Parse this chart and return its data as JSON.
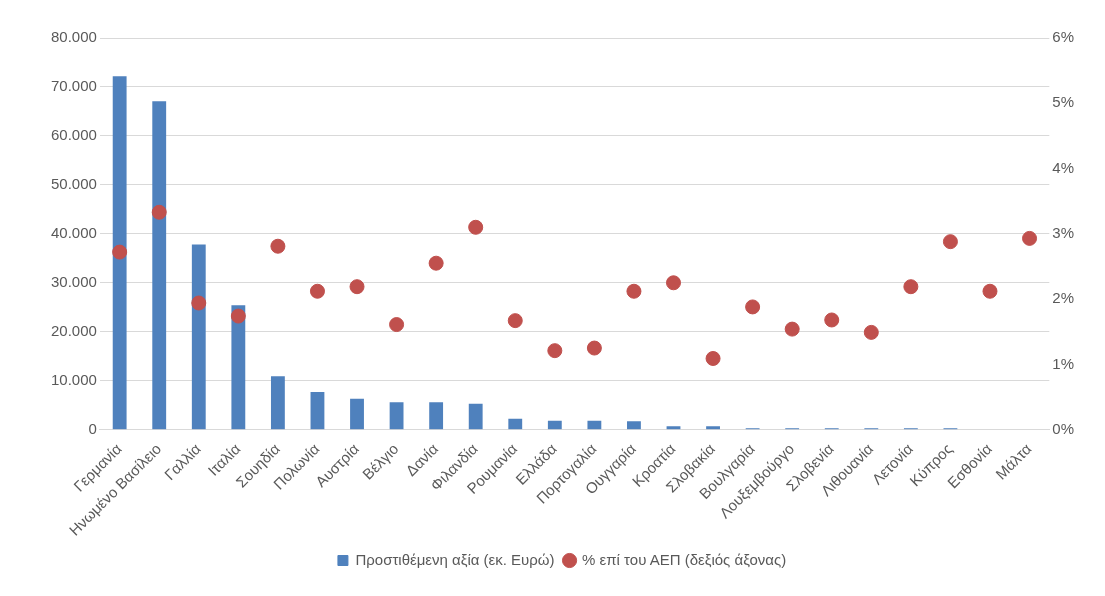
{
  "chart_data": {
    "type": "bar",
    "categories": [
      "Γερμανία",
      "Ηνωμένο Βασίλειο",
      "Γαλλία",
      "Ιταλία",
      "Σουηδία",
      "Πολωνία",
      "Αυστρία",
      "Βέλγιο",
      "Δανία",
      "Φιλανδία",
      "Ρουμανία",
      "Ελλάδα",
      "Πορτογαλία",
      "Ουγγαρία",
      "Κροατία",
      "Σλοβακία",
      "Βουλγαρία",
      "Λουξεμβούργο",
      "Σλοβενία",
      "Λιθουανία",
      "Λετονία",
      "Κύπρος",
      "Εσθονία",
      "Μάλτα"
    ],
    "series": [
      {
        "name": "Προστιθέμενη αξία (εκ. Ευρώ)",
        "color": "#4f81bd",
        "values": [
          72200,
          67100,
          37800,
          25400,
          10900,
          7700,
          6300,
          5600,
          5600,
          5300,
          2200,
          1800,
          1800,
          1700,
          700,
          700,
          300,
          300,
          300,
          300,
          300,
          300,
          null,
          null
        ]
      },
      {
        "name": "% επί του ΑΕΠ (δεξιός άξονας)",
        "type": "scatter",
        "axis": "y2",
        "color": "#c0504d",
        "values": [
          2.72,
          3.33,
          1.94,
          1.74,
          2.81,
          2.12,
          2.19,
          1.61,
          2.55,
          3.1,
          1.67,
          1.21,
          1.25,
          2.12,
          2.25,
          1.09,
          1.88,
          1.54,
          1.68,
          1.49,
          2.19,
          2.88,
          2.12,
          2.93
        ]
      }
    ],
    "ylim": [
      0,
      80000
    ],
    "yticks": [
      {
        "value": 0,
        "label": "0"
      },
      {
        "value": 10000,
        "label": "10.000"
      },
      {
        "value": 20000,
        "label": "20.000"
      },
      {
        "value": 30000,
        "label": "30.000"
      },
      {
        "value": 40000,
        "label": "40.000"
      },
      {
        "value": 50000,
        "label": "50.000"
      },
      {
        "value": 60000,
        "label": "60.000"
      },
      {
        "value": 70000,
        "label": "70.000"
      },
      {
        "value": 80000,
        "label": "80.000"
      }
    ],
    "y2lim": [
      0,
      6
    ],
    "y2ticks": [
      {
        "value": 0,
        "label": "0%"
      },
      {
        "value": 1,
        "label": "1%"
      },
      {
        "value": 2,
        "label": "2%"
      },
      {
        "value": 3,
        "label": "3%"
      },
      {
        "value": 4,
        "label": "4%"
      },
      {
        "value": 5,
        "label": "5%"
      },
      {
        "value": 6,
        "label": "6%"
      }
    ],
    "grid": "y",
    "legend": "bottom",
    "marker": "circle"
  }
}
